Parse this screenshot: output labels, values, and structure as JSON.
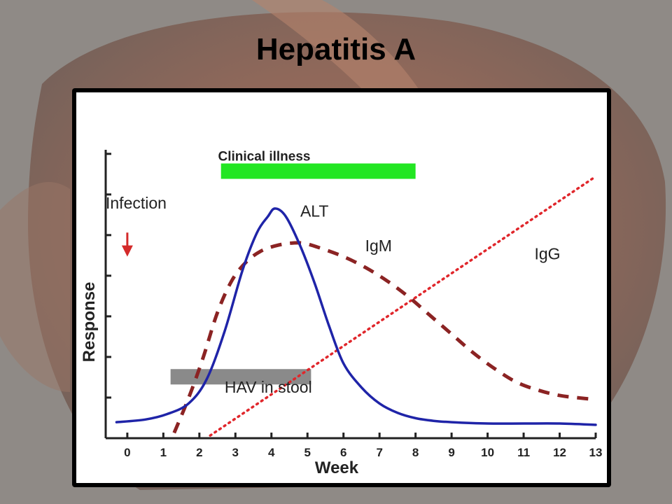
{
  "slide": {
    "title": "Hepatitis A"
  },
  "chart_data": {
    "type": "line",
    "title": "",
    "xlabel": "Week",
    "ylabel": "Response",
    "xlim": [
      -0.6,
      13
    ],
    "ylim": [
      0,
      10.8
    ],
    "x_ticks": [
      0,
      1,
      2,
      3,
      4,
      5,
      6,
      7,
      8,
      9,
      10,
      11,
      12,
      13
    ],
    "grid": false,
    "legend": "none",
    "colors": {
      "ALT": "#1f24a8",
      "IgM": "#8b2323",
      "IgG": "#e0262b",
      "clinical": "#22e622",
      "hav": "#8a8a8a",
      "infection": "#d42a2a"
    },
    "series": [
      {
        "name": "ALT",
        "style": "solid",
        "x": [
          -0.3,
          0.5,
          1.1,
          1.7,
          2.2,
          2.7,
          3.2,
          3.6,
          3.9,
          4.1,
          4.4,
          4.8,
          5.2,
          5.6,
          6.0,
          6.5,
          7.0,
          7.5,
          8.0,
          8.5,
          9.0,
          10.0,
          11.0,
          12.0,
          13.0
        ],
        "y": [
          0.6,
          0.7,
          0.9,
          1.3,
          2.2,
          4.0,
          6.3,
          7.7,
          8.3,
          8.6,
          8.3,
          7.2,
          5.8,
          4.2,
          2.8,
          1.9,
          1.3,
          0.95,
          0.75,
          0.65,
          0.6,
          0.55,
          0.55,
          0.55,
          0.5
        ]
      },
      {
        "name": "IgM",
        "style": "dashed",
        "x": [
          1.3,
          1.7,
          2.1,
          2.5,
          2.9,
          3.3,
          3.7,
          4.1,
          4.5,
          4.9,
          5.4,
          6.0,
          6.6,
          7.2,
          7.8,
          8.4,
          9.0,
          9.6,
          10.2,
          10.8,
          11.4,
          12.0,
          12.6,
          13.0
        ],
        "y": [
          0.2,
          1.5,
          3.0,
          4.7,
          5.9,
          6.6,
          7.0,
          7.2,
          7.3,
          7.3,
          7.1,
          6.8,
          6.4,
          5.9,
          5.3,
          4.6,
          3.9,
          3.2,
          2.6,
          2.1,
          1.8,
          1.6,
          1.5,
          1.45
        ]
      },
      {
        "name": "IgG",
        "style": "dotted",
        "x": [
          2.3,
          13.0
        ],
        "y": [
          0.1,
          9.8
        ]
      }
    ],
    "annotations": [
      {
        "text": "Clinical illness",
        "x": 3.8,
        "y": 10.4
      },
      {
        "text": "ALT",
        "x": 4.8,
        "y": 8.3
      },
      {
        "text": "IgM",
        "x": 6.6,
        "y": 7.0
      },
      {
        "text": "IgG",
        "x": 11.3,
        "y": 6.7
      },
      {
        "text": "Infection",
        "x": -0.6,
        "y": 8.6
      },
      {
        "text": "HAV in stool",
        "x": 2.7,
        "y": 1.7
      }
    ],
    "bars": [
      {
        "name": "Clinical illness",
        "x0": 2.6,
        "x1": 8.0,
        "y": 10.0
      },
      {
        "name": "HAV in stool",
        "x0": 1.2,
        "x1": 5.1,
        "y": 2.3
      }
    ],
    "infection_arrow": {
      "x": 0.0,
      "y_top": 7.7,
      "y_bottom": 6.8
    }
  }
}
